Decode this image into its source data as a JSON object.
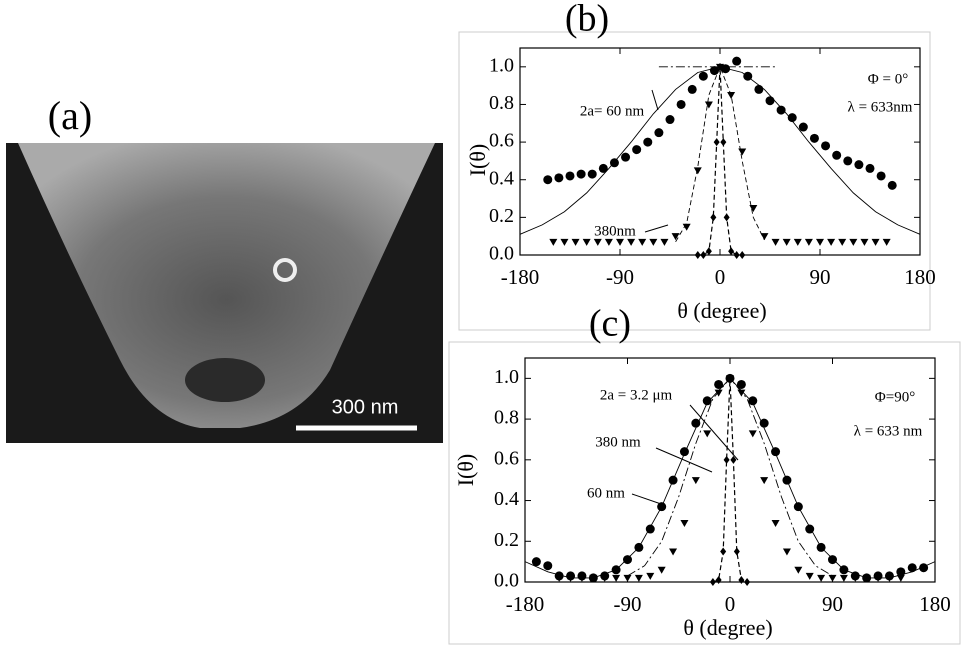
{
  "panel_a": {
    "label": "(a)",
    "scale_bar": "300 nm"
  },
  "chart_data": [
    {
      "type": "scatter",
      "title": "(b)",
      "xlabel": "θ  (degree)",
      "ylabel": "I(θ)",
      "xlim": [
        -180,
        180
      ],
      "xticks": [
        -180,
        -90,
        0,
        90,
        180
      ],
      "ylim": [
        0,
        1.1
      ],
      "yticks": [
        {
          "value": 0,
          "label": "0.0"
        },
        0.2,
        0.4,
        0.6,
        0.8,
        {
          "value": 1,
          "label": "1.0"
        }
      ],
      "annotations": [
        "Φ = 0°",
        "λ = 633nm"
      ],
      "series": [
        {
          "name": "2a= 60 nm",
          "color": "#000000",
          "marker": "circle",
          "x": [
            -155,
            -145,
            -135,
            -125,
            -115,
            -105,
            -95,
            -85,
            -75,
            -65,
            -55,
            -45,
            -35,
            -25,
            -15,
            -5,
            5,
            15,
            25,
            35,
            45,
            55,
            65,
            75,
            85,
            95,
            105,
            115,
            125,
            135,
            145,
            155
          ],
          "values": [
            0.4,
            0.41,
            0.42,
            0.43,
            0.43,
            0.46,
            0.49,
            0.52,
            0.56,
            0.6,
            0.65,
            0.72,
            0.8,
            0.88,
            0.95,
            0.98,
            0.99,
            1.03,
            0.95,
            0.88,
            0.82,
            0.77,
            0.73,
            0.68,
            0.62,
            0.58,
            0.53,
            0.5,
            0.48,
            0.46,
            0.42,
            0.37
          ]
        },
        {
          "color": "#000000",
          "line": "solid",
          "x": [
            -180,
            -160,
            -140,
            -120,
            -100,
            -80,
            -60,
            -40,
            -20,
            0,
            20,
            40,
            60,
            80,
            100,
            120,
            140,
            160,
            180
          ],
          "values": [
            0.11,
            0.16,
            0.23,
            0.33,
            0.46,
            0.6,
            0.75,
            0.88,
            0.97,
            1.0,
            0.97,
            0.88,
            0.75,
            0.6,
            0.46,
            0.33,
            0.23,
            0.16,
            0.11
          ]
        },
        {
          "color": "#000000",
          "line": "dashdot",
          "x": [
            -55,
            50
          ],
          "values": [
            1.0,
            1.0
          ]
        },
        {
          "name": "380nm",
          "color": "#000000",
          "marker": "triangle",
          "x": [
            -150,
            -140,
            -130,
            -120,
            -110,
            -100,
            -90,
            -80,
            -70,
            -60,
            -50,
            -40,
            -30,
            -20,
            -10,
            0,
            10,
            20,
            30,
            40,
            50,
            60,
            70,
            80,
            90,
            100,
            110,
            120,
            130,
            140,
            150
          ],
          "values": [
            0.07,
            0.07,
            0.07,
            0.07,
            0.07,
            0.07,
            0.07,
            0.07,
            0.07,
            0.07,
            0.07,
            0.1,
            0.15,
            0.45,
            0.8,
            1.0,
            0.85,
            0.55,
            0.25,
            0.1,
            0.07,
            0.07,
            0.07,
            0.07,
            0.07,
            0.07,
            0.07,
            0.07,
            0.07,
            0.07,
            0.07
          ]
        },
        {
          "color": "#000000",
          "line": "dashed",
          "x": [
            -40,
            -30,
            -20,
            -10,
            0,
            10,
            20,
            30,
            40
          ],
          "values": [
            0.07,
            0.17,
            0.47,
            0.85,
            1.0,
            0.85,
            0.5,
            0.2,
            0.08
          ]
        },
        {
          "color": "#000000",
          "marker": "diamond",
          "line": "dashed",
          "x": [
            -20,
            -15,
            -10,
            -6,
            -3,
            0,
            3,
            6,
            10,
            15,
            20
          ],
          "values": [
            0,
            0,
            0.02,
            0.2,
            0.6,
            1.0,
            0.6,
            0.2,
            0.02,
            0,
            0
          ]
        }
      ]
    },
    {
      "type": "scatter",
      "title": "(c)",
      "xlabel": "θ  (degree)",
      "ylabel": "I(θ)",
      "xlim": [
        -180,
        180
      ],
      "xticks": [
        -180,
        -90,
        0,
        90,
        180
      ],
      "ylim": [
        0,
        1.1
      ],
      "yticks": [
        {
          "value": 0,
          "label": "0.0"
        },
        0.2,
        0.4,
        0.6,
        0.8,
        {
          "value": 1,
          "label": "1.0"
        }
      ],
      "annotations": [
        "Φ=90°",
        "λ = 633 nm"
      ],
      "series": [
        {
          "name": "2a = 3.2 μm",
          "color": "#000000",
          "marker": "diamond",
          "line": "dashed",
          "x": [
            -15,
            -10,
            -6,
            -3,
            0,
            3,
            6,
            10,
            15
          ],
          "values": [
            0,
            0.01,
            0.15,
            0.6,
            1.0,
            0.6,
            0.15,
            0.01,
            0
          ]
        },
        {
          "name": "380 nm",
          "color": "#000000",
          "marker": "triangle",
          "x": [
            -150,
            -140,
            -130,
            -120,
            -110,
            -100,
            -90,
            -80,
            -70,
            -60,
            -50,
            -40,
            -30,
            -20,
            -10,
            0,
            10,
            20,
            30,
            40,
            50,
            60,
            70,
            80,
            90,
            100,
            110,
            120,
            130,
            140,
            150
          ],
          "values": [
            0.02,
            0.02,
            0.02,
            0.02,
            0.02,
            0.02,
            0.02,
            0.02,
            0.03,
            0.06,
            0.15,
            0.29,
            0.5,
            0.73,
            0.93,
            1.0,
            0.93,
            0.73,
            0.5,
            0.29,
            0.15,
            0.06,
            0.03,
            0.02,
            0.02,
            0.02,
            0.02,
            0.02,
            0.02,
            0.02,
            0.02
          ]
        },
        {
          "color": "#000000",
          "line": "dashdot",
          "x": [
            -90,
            -75,
            -60,
            -45,
            -30,
            -15,
            0,
            15,
            30,
            45,
            60,
            75,
            90
          ],
          "values": [
            0.03,
            0.08,
            0.2,
            0.42,
            0.68,
            0.9,
            1.0,
            0.9,
            0.68,
            0.42,
            0.2,
            0.08,
            0.03
          ]
        },
        {
          "name": "60 nm",
          "color": "#000000",
          "marker": "circle",
          "x": [
            -170,
            -160,
            -150,
            -140,
            -130,
            -120,
            -110,
            -100,
            -90,
            -80,
            -70,
            -60,
            -50,
            -40,
            -30,
            -20,
            -10,
            0,
            10,
            20,
            30,
            40,
            50,
            60,
            70,
            80,
            90,
            100,
            110,
            120,
            130,
            140,
            150,
            160,
            170
          ],
          "values": [
            0.1,
            0.08,
            0.03,
            0.03,
            0.03,
            0.02,
            0.03,
            0.06,
            0.11,
            0.17,
            0.26,
            0.37,
            0.5,
            0.64,
            0.78,
            0.89,
            0.97,
            1.0,
            0.97,
            0.89,
            0.78,
            0.64,
            0.5,
            0.37,
            0.26,
            0.17,
            0.11,
            0.06,
            0.03,
            0.02,
            0.03,
            0.03,
            0.05,
            0.07,
            0.07
          ]
        },
        {
          "color": "#000000",
          "line": "solid",
          "x": [
            -180,
            -160,
            -140,
            -120,
            -100,
            -80,
            -60,
            -40,
            -20,
            0,
            20,
            40,
            60,
            80,
            100,
            120,
            140,
            160,
            180
          ],
          "values": [
            0.1,
            0.05,
            0.02,
            0.02,
            0.06,
            0.17,
            0.37,
            0.63,
            0.88,
            1.0,
            0.88,
            0.63,
            0.37,
            0.17,
            0.06,
            0.02,
            0.02,
            0.05,
            0.1
          ]
        }
      ]
    }
  ]
}
